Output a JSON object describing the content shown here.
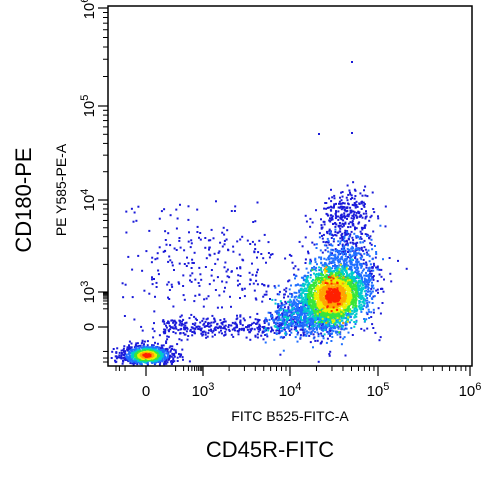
{
  "chart_data": {
    "type": "scatter",
    "xlabel": "FITC B525-FITC-A",
    "ylabel": "PE Y585-PE-A",
    "outer_xlabel": "CD45R-FITC",
    "outer_ylabel": "CD180-PE",
    "x_scale": "biexponential",
    "y_scale": "biexponential",
    "xlim": [
      -300,
      1000000
    ],
    "ylim": [
      -300,
      1000000
    ],
    "x_ticks": [
      {
        "value": 0,
        "label": "0"
      },
      {
        "value": 1000,
        "label": "10^3"
      },
      {
        "value": 10000,
        "label": "10^4"
      },
      {
        "value": 100000,
        "label": "10^5"
      },
      {
        "value": 1000000,
        "label": "10^6"
      }
    ],
    "y_ticks": [
      {
        "value": 0,
        "label": "0"
      },
      {
        "value": 1000,
        "label": "10^3"
      },
      {
        "value": 10000,
        "label": "10^4"
      },
      {
        "value": 100000,
        "label": "10^5"
      },
      {
        "value": 1000000,
        "label": "10^6"
      }
    ],
    "grid": false,
    "colormap": "density (blue-green-yellow-orange-red)",
    "populations": [
      {
        "description": "double-negative cluster",
        "x_center": 0,
        "y_center": -80,
        "relative_size": 0.25
      },
      {
        "description": "CD45R+ CD180+ cluster",
        "x_center": 30000,
        "y_center": 700,
        "relative_size": 0.75
      }
    ]
  }
}
